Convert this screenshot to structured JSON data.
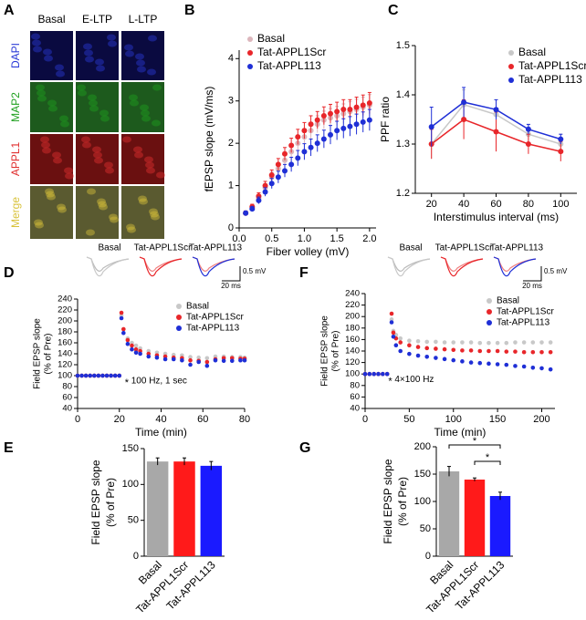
{
  "panel_a": {
    "panel": "A",
    "columns": [
      "Basal",
      "E-LTP",
      "L-LTP"
    ],
    "rows": [
      "DAPI",
      "MAP2",
      "APPL1",
      "Merge"
    ]
  },
  "chart_data": [
    {
      "type": "scatter",
      "panel": "B",
      "xlabel": "Fiber volley (mV)",
      "ylabel": "fEPSP  slope (mV/ms)",
      "x": [
        0.1,
        0.2,
        0.3,
        0.4,
        0.5,
        0.6,
        0.7,
        0.8,
        0.9,
        1.0,
        1.1,
        1.2,
        1.3,
        1.4,
        1.5,
        1.6,
        1.7,
        1.8,
        1.9,
        2.0
      ],
      "series": [
        {
          "name": "Basal",
          "color": "#dcb6bc",
          "values": [
            0.35,
            0.48,
            0.7,
            0.95,
            1.2,
            1.4,
            1.6,
            1.8,
            2.0,
            2.15,
            2.3,
            2.45,
            2.55,
            2.6,
            2.65,
            2.7,
            2.75,
            2.8,
            2.85,
            2.9
          ],
          "errors": [
            0.05,
            0.06,
            0.08,
            0.1,
            0.12,
            0.14,
            0.15,
            0.17,
            0.18,
            0.19,
            0.2,
            0.2,
            0.21,
            0.22,
            0.22,
            0.23,
            0.23,
            0.24,
            0.24,
            0.25
          ]
        },
        {
          "name": "Tat-APPL1Scr",
          "color": "#e8262a",
          "values": [
            0.35,
            0.5,
            0.75,
            1.0,
            1.25,
            1.5,
            1.75,
            1.95,
            2.15,
            2.3,
            2.45,
            2.55,
            2.65,
            2.7,
            2.75,
            2.8,
            2.8,
            2.85,
            2.9,
            2.95
          ],
          "errors": [
            0.05,
            0.06,
            0.08,
            0.1,
            0.12,
            0.14,
            0.15,
            0.17,
            0.18,
            0.19,
            0.2,
            0.2,
            0.21,
            0.22,
            0.22,
            0.23,
            0.23,
            0.24,
            0.24,
            0.25
          ]
        },
        {
          "name": "Tat-APPL113",
          "color": "#1f2fd6",
          "values": [
            0.35,
            0.45,
            0.65,
            0.85,
            1.05,
            1.2,
            1.35,
            1.5,
            1.65,
            1.8,
            1.9,
            2.0,
            2.1,
            2.2,
            2.3,
            2.35,
            2.4,
            2.45,
            2.5,
            2.55
          ],
          "errors": [
            0.05,
            0.06,
            0.08,
            0.1,
            0.12,
            0.14,
            0.15,
            0.17,
            0.18,
            0.19,
            0.2,
            0.2,
            0.21,
            0.22,
            0.22,
            0.23,
            0.23,
            0.24,
            0.24,
            0.25
          ]
        }
      ],
      "xlim": [
        0,
        2.1
      ],
      "ylim": [
        0,
        4.2
      ],
      "xticks": [
        {
          "value": 0,
          "label": "0.0"
        },
        0.5,
        {
          "value": 1,
          "label": "1.0"
        },
        1.5,
        {
          "value": 2,
          "label": "2.0"
        }
      ],
      "yticks": [
        0,
        1,
        2,
        3,
        4
      ],
      "legend": "upper left"
    },
    {
      "type": "line",
      "panel": "C",
      "xlabel": "Interstimulus interval (ms)",
      "ylabel": "PPF  ratio",
      "x": [
        20,
        40,
        60,
        80,
        100
      ],
      "series": [
        {
          "name": "Basal",
          "color": "#c8c8c8",
          "values": [
            1.3,
            1.38,
            1.36,
            1.32,
            1.3
          ],
          "errors": [
            0.03,
            0.03,
            0.03,
            0.02,
            0.02
          ]
        },
        {
          "name": "Tat-APPL1Scr",
          "color": "#e8262a",
          "values": [
            1.3,
            1.35,
            1.325,
            1.3,
            1.285
          ],
          "errors": [
            0.03,
            0.04,
            0.04,
            0.02,
            0.02
          ]
        },
        {
          "name": "Tat-APPL113",
          "color": "#1f2fd6",
          "values": [
            1.335,
            1.385,
            1.37,
            1.33,
            1.31
          ],
          "errors": [
            0.04,
            0.03,
            0.02,
            0.01,
            0.01
          ]
        }
      ],
      "xlim": [
        10,
        110
      ],
      "ylim": [
        1.2,
        1.5
      ],
      "xticks": [
        20,
        40,
        60,
        80,
        100
      ],
      "yticks": [
        1.2,
        1.3,
        1.4,
        1.5
      ],
      "legend": "upper right"
    },
    {
      "type": "scatter",
      "panel": "D",
      "xlabel": "Time (min)",
      "ylabel": [
        "Field EPSP slope",
        "(% of Pre)"
      ],
      "annotation_marker": "*",
      "annotation": "100 Hz, 1 sec",
      "traces": {
        "labels": [
          "Basal",
          "Tat-APPL1Scr",
          "Tat-APPL113"
        ],
        "scale_y": "0.5 mV",
        "scale_x": "20 ms"
      },
      "x": [
        0,
        2,
        4,
        6,
        8,
        10,
        12,
        14,
        16,
        18,
        20,
        21,
        22,
        24,
        26,
        28,
        30,
        34,
        38,
        42,
        46,
        50,
        54,
        58,
        62,
        66,
        70,
        74,
        78,
        80
      ],
      "series": [
        {
          "name": "Basal",
          "color": "#c8c8c8",
          "values": [
            100,
            100,
            100,
            100,
            100,
            100,
            100,
            100,
            100,
            100,
            100,
            210,
            185,
            168,
            160,
            155,
            150,
            145,
            142,
            140,
            138,
            137,
            134,
            133,
            132,
            135,
            135,
            134,
            134,
            133
          ]
        },
        {
          "name": "Tat-APPL1Scr",
          "color": "#e8262a",
          "values": [
            100,
            100,
            100,
            100,
            100,
            100,
            100,
            100,
            100,
            100,
            100,
            215,
            185,
            165,
            155,
            148,
            145,
            140,
            137,
            135,
            133,
            132,
            128,
            127,
            125,
            130,
            132,
            132,
            131,
            131
          ]
        },
        {
          "name": "Tat-APPL113",
          "color": "#1f2fd6",
          "values": [
            100,
            100,
            100,
            100,
            100,
            100,
            100,
            100,
            100,
            100,
            100,
            205,
            178,
            158,
            148,
            142,
            140,
            135,
            133,
            130,
            130,
            128,
            120,
            125,
            118,
            128,
            127,
            127,
            128,
            128
          ]
        }
      ],
      "xlim": [
        0,
        80
      ],
      "ylim": [
        40,
        240
      ],
      "xticks": [
        0,
        20,
        40,
        60,
        80
      ],
      "yticks": [
        40,
        60,
        80,
        100,
        120,
        140,
        160,
        180,
        200,
        220,
        240
      ],
      "legend": "upper right"
    },
    {
      "type": "bar",
      "panel": "E",
      "ylabel": [
        "Field EPSP slope",
        "(% of Pre)"
      ],
      "categories": [
        "Basal",
        "Tat-APPL1Scr",
        "Tat-APPL113"
      ],
      "values": [
        132,
        132,
        126
      ],
      "errors": [
        5,
        5,
        6
      ],
      "colors": [
        "#a8a8a8",
        "#ff1a1a",
        "#1a1aff"
      ],
      "ylim": [
        0,
        150
      ],
      "yticks": [
        0,
        50,
        100,
        150
      ]
    },
    {
      "type": "scatter",
      "panel": "F",
      "xlabel": "Time (min)",
      "ylabel": [
        "Field EPSP slope",
        "(% of Pre)"
      ],
      "annotation_marker": "*",
      "annotation": "4×100 Hz",
      "traces": {
        "labels": [
          "Basal",
          "Tat-APPL1Scr",
          "Tat-APPL113"
        ],
        "scale_y": "0.5 mV",
        "scale_x": "20 ms"
      },
      "x": [
        0,
        5,
        10,
        15,
        20,
        25,
        30,
        32,
        35,
        40,
        50,
        60,
        70,
        80,
        90,
        100,
        110,
        120,
        130,
        140,
        150,
        160,
        170,
        180,
        190,
        200,
        210
      ],
      "series": [
        {
          "name": "Basal",
          "color": "#c8c8c8",
          "values": [
            100,
            100,
            100,
            100,
            100,
            100,
            195,
            175,
            168,
            162,
            158,
            157,
            156,
            156,
            155,
            155,
            155,
            155,
            154,
            154,
            154,
            154,
            155,
            155,
            155,
            155,
            155
          ]
        },
        {
          "name": "Tat-APPL1Scr",
          "color": "#e8262a",
          "values": [
            100,
            100,
            100,
            100,
            100,
            100,
            205,
            172,
            162,
            155,
            150,
            147,
            145,
            144,
            143,
            142,
            141,
            141,
            140,
            140,
            140,
            139,
            139,
            138,
            138,
            138,
            138
          ]
        },
        {
          "name": "Tat-APPL113",
          "color": "#1f2fd6",
          "values": [
            100,
            100,
            100,
            100,
            100,
            100,
            190,
            165,
            150,
            140,
            135,
            132,
            130,
            128,
            126,
            124,
            122,
            120,
            119,
            118,
            117,
            116,
            114,
            113,
            111,
            110,
            108
          ]
        }
      ],
      "xlim": [
        0,
        215
      ],
      "ylim": [
        40,
        240
      ],
      "xticks": [
        0,
        50,
        100,
        150,
        200
      ],
      "yticks": [
        40,
        60,
        80,
        100,
        120,
        140,
        160,
        180,
        200,
        220,
        240
      ],
      "legend": "upper right"
    },
    {
      "type": "bar",
      "panel": "G",
      "ylabel": [
        "Field EPSP slope",
        "(% of Pre)"
      ],
      "categories": [
        "Basal",
        "Tat-APPL1Scr",
        "Tat-APPL113"
      ],
      "values": [
        155,
        140,
        110
      ],
      "errors": [
        9,
        3,
        7
      ],
      "colors": [
        "#a8a8a8",
        "#ff1a1a",
        "#1a1aff"
      ],
      "ylim": [
        0,
        200
      ],
      "yticks": [
        0,
        50,
        100,
        150,
        200
      ],
      "significance": [
        "*",
        "*"
      ]
    }
  ]
}
